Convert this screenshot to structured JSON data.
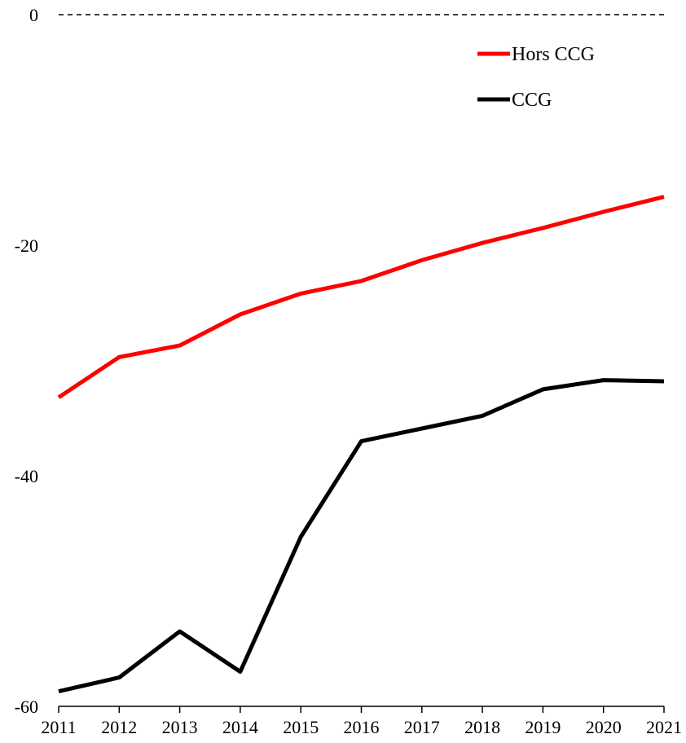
{
  "chart_data": {
    "type": "line",
    "title": "",
    "xlabel": "",
    "ylabel": "",
    "x": [
      "2011",
      "2012",
      "2013",
      "2014",
      "2015",
      "2016",
      "2017",
      "2018",
      "2019",
      "2020",
      "2021"
    ],
    "ylim": [
      -60,
      0
    ],
    "y_ticks": [
      "0",
      "-20",
      "-40",
      "-60"
    ],
    "y_tick_values": [
      0,
      -20,
      -40,
      -60
    ],
    "zero_line": "dashed",
    "grid": false,
    "legend_position": "top-right",
    "series": [
      {
        "name": "Hors CCG",
        "color": "#ff0000",
        "values": [
          -33.2,
          -29.7,
          -28.7,
          -26.0,
          -24.2,
          -23.1,
          -21.3,
          -19.8,
          -18.5,
          -17.1,
          -15.8
        ]
      },
      {
        "name": "CCG",
        "color": "#000000",
        "values": [
          -58.7,
          -57.5,
          -53.5,
          -57.0,
          -45.3,
          -37.0,
          -35.9,
          -34.8,
          -32.5,
          -31.7,
          -31.8
        ]
      }
    ]
  }
}
